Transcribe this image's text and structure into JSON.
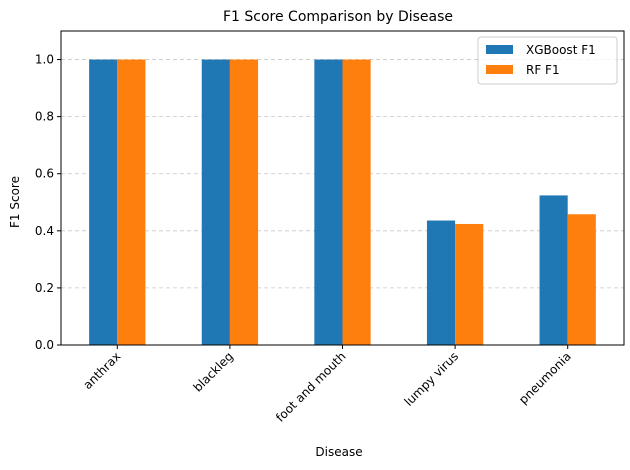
{
  "chart_data": {
    "type": "bar",
    "title": "F1 Score Comparison by Disease",
    "xlabel": "Disease",
    "ylabel": "F1 Score",
    "categories": [
      "anthrax",
      "blackleg",
      "foot and mouth",
      "lumpy virus",
      "pneumonia"
    ],
    "series": [
      {
        "name": "XGBoost F1",
        "values": [
          1.0,
          1.0,
          1.0,
          0.436,
          0.524
        ],
        "color": "#1f77b4"
      },
      {
        "name": "RF F1",
        "values": [
          1.0,
          1.0,
          1.0,
          0.424,
          0.458
        ],
        "color": "#ff7f0e"
      }
    ],
    "ylim": [
      0,
      1.1
    ],
    "yticks": [
      "0.0",
      "0.2",
      "0.4",
      "0.6",
      "0.8",
      "1.0"
    ],
    "grid": "y-dashed",
    "legend_position": "top-right",
    "xtick_rotation": 45
  }
}
